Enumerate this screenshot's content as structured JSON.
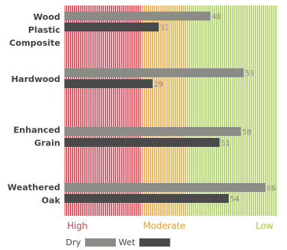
{
  "chart_data": {
    "type": "bar",
    "orientation": "horizontal",
    "title": "",
    "xlabel": "",
    "ylabel": "",
    "xlim": [
      0,
      70
    ],
    "grid": false,
    "legend_position": "bottom",
    "categories": [
      [
        "Wood",
        "Plastic",
        "Composite"
      ],
      [
        "Hardwood"
      ],
      [
        "Enhanced",
        "Grain"
      ],
      [
        "Weathered",
        "Oak"
      ]
    ],
    "series": [
      {
        "name": "Dry",
        "values": [
          48,
          59,
          58,
          66
        ],
        "color": "#8c8c86"
      },
      {
        "name": "Wet",
        "values": [
          31,
          29,
          51,
          54
        ],
        "color": "#4a4a4a"
      }
    ],
    "zones": [
      {
        "label": "High",
        "from": 0,
        "to": 25,
        "color": "#e83a4a",
        "label_color": "#e23a49"
      },
      {
        "label": "Moderate",
        "from": 25,
        "to": 40,
        "color": "#f4a93a",
        "label_color": "#f0a23a"
      },
      {
        "label": "Low",
        "from": 40,
        "to": 70,
        "color": "#a9d25a",
        "label_color": "#9ccc45"
      }
    ]
  }
}
